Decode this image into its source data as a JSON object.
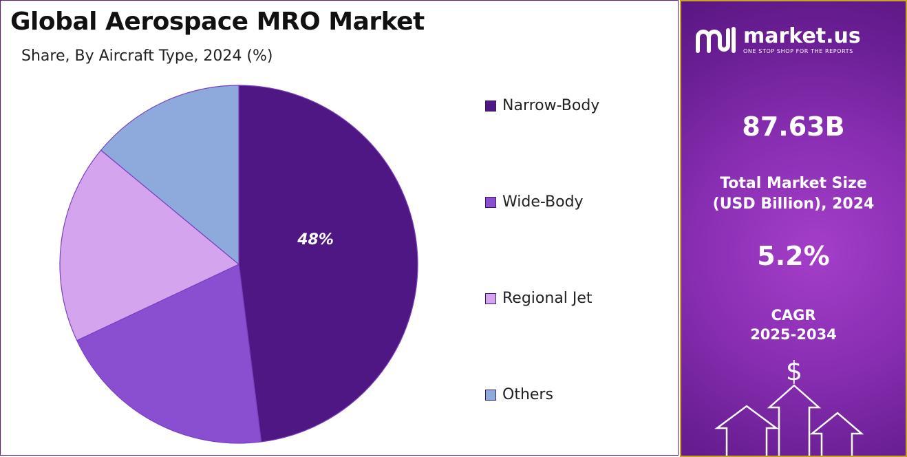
{
  "header": {
    "title": "Global Aerospace MRO Market",
    "subtitle": "Share, By Aircraft Type, 2024 (%)"
  },
  "chart_data": {
    "type": "pie",
    "title": "Global Aerospace MRO Market",
    "subtitle": "Share, By Aircraft Type, 2024 (%)",
    "categories": [
      "Narrow-Body",
      "Wide-Body",
      "Regional Jet",
      "Others"
    ],
    "values": [
      48,
      20,
      18,
      14
    ],
    "colors": [
      "#4f1783",
      "#8a4fd0",
      "#d4a5ee",
      "#8eaadd"
    ],
    "data_labels": [
      "48%",
      "",
      "",
      ""
    ],
    "legend_position": "right"
  },
  "sidebar": {
    "brand_name": "market.us",
    "brand_tagline": "ONE STOP SHOP FOR THE REPORTS",
    "market_size_value": "87.63B",
    "market_size_label_1": "Total Market Size",
    "market_size_label_2": "(USD Billion), 2024",
    "cagr_value": "5.2%",
    "cagr_label_1": "CAGR",
    "cagr_label_2": "2025-2034",
    "currency_symbol": "$"
  }
}
